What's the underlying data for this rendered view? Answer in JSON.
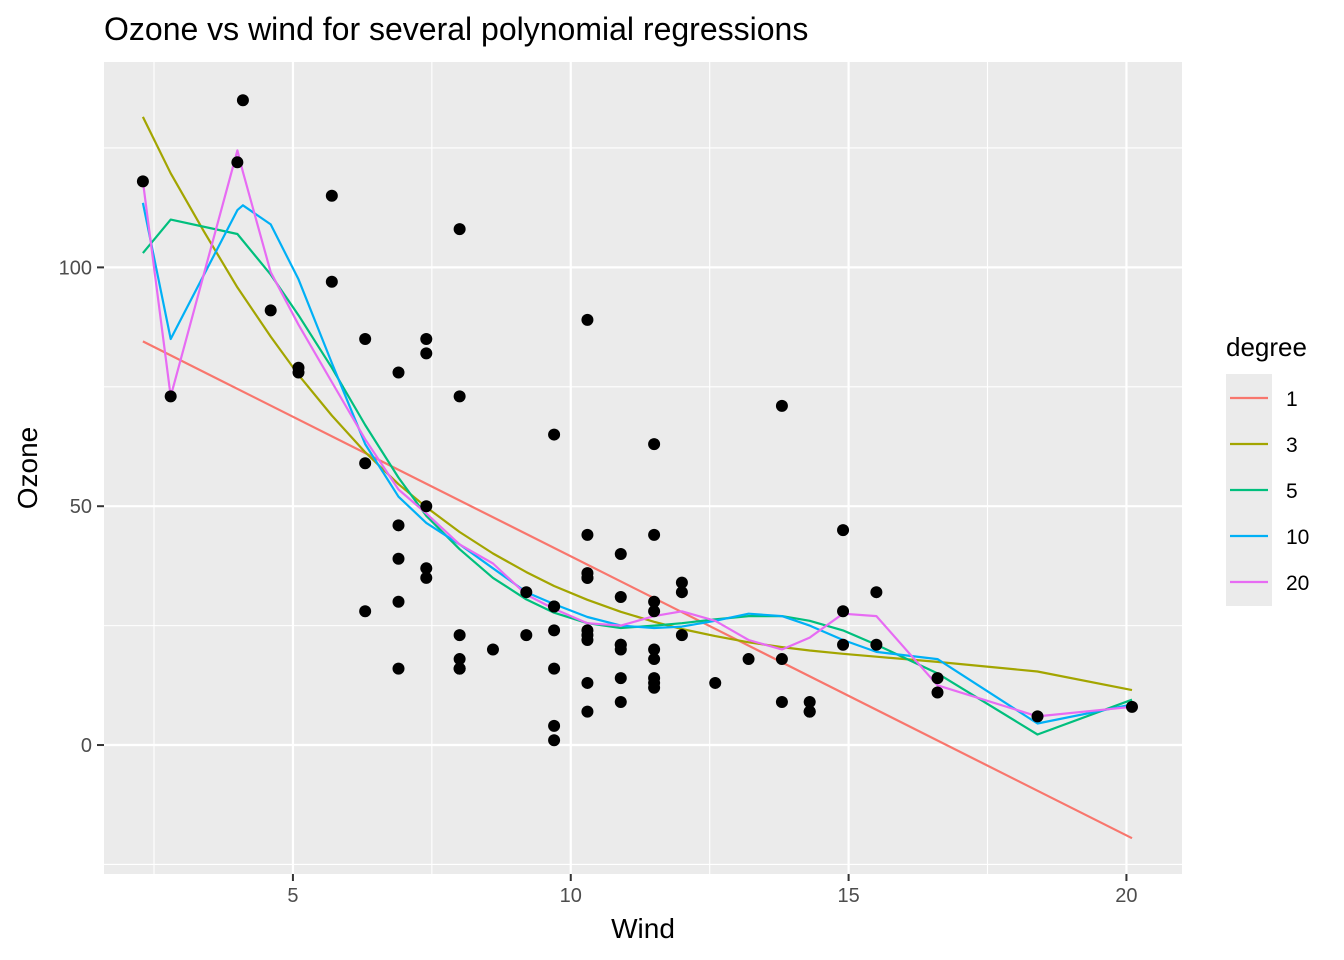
{
  "chart_data": {
    "type": "scatter",
    "title": "Ozone vs wind for several polynomial regressions",
    "xlabel": "Wind",
    "ylabel": "Ozone",
    "xlim": [
      1.6,
      21.0
    ],
    "ylim": [
      -27,
      143
    ],
    "x_ticks": [
      5,
      10,
      15,
      20
    ],
    "y_ticks": [
      0,
      50,
      100
    ],
    "x_minor_ticks": [
      2.5,
      7.5,
      12.5,
      17.5
    ],
    "y_minor_ticks": [
      -25,
      25,
      75,
      125
    ],
    "grid": true,
    "legend": {
      "title": "degree",
      "position": "right"
    },
    "points": {
      "color": "#000000",
      "x": [
        2.3,
        2.8,
        4.0,
        4.1,
        4.6,
        5.1,
        5.1,
        5.7,
        5.7,
        6.3,
        6.3,
        6.3,
        6.9,
        6.9,
        6.9,
        6.9,
        6.9,
        7.4,
        7.4,
        7.4,
        7.4,
        7.4,
        8.0,
        8.0,
        8.0,
        8.0,
        8.0,
        8.0,
        8.6,
        9.2,
        9.2,
        9.7,
        9.7,
        9.7,
        9.7,
        9.7,
        9.7,
        9.7,
        10.3,
        10.3,
        10.3,
        10.3,
        10.3,
        10.3,
        10.3,
        10.3,
        10.3,
        10.3,
        10.9,
        10.9,
        10.9,
        10.9,
        10.9,
        10.9,
        10.9,
        11.5,
        11.5,
        11.5,
        11.5,
        11.5,
        11.5,
        11.5,
        11.5,
        11.5,
        12.0,
        12.0,
        12.0,
        12.6,
        13.2,
        13.8,
        13.8,
        13.8,
        14.3,
        14.3,
        14.3,
        14.9,
        14.9,
        14.9,
        15.5,
        15.5,
        16.6,
        16.6,
        18.4,
        20.1
      ],
      "y": [
        118,
        73,
        122,
        135,
        91,
        78,
        79,
        97,
        115,
        59,
        85,
        28,
        78,
        46,
        39,
        30,
        16,
        85,
        82,
        50,
        37,
        35,
        108,
        73,
        23,
        18,
        16,
        16,
        20,
        32,
        23,
        65,
        29,
        24,
        16,
        4,
        1,
        29,
        89,
        44,
        36,
        35,
        24,
        23,
        22,
        13,
        7,
        35,
        40,
        31,
        21,
        20,
        14,
        9,
        21,
        63,
        44,
        30,
        28,
        20,
        18,
        14,
        13,
        12,
        34,
        32,
        23,
        13,
        18,
        71,
        18,
        9,
        9,
        7,
        7,
        45,
        28,
        21,
        32,
        21,
        14,
        11,
        6,
        8
      ]
    },
    "series": [
      {
        "name": "1",
        "color": "#f8766d",
        "x": [
          2.3,
          20.1
        ],
        "y": [
          84.5,
          -19.5
        ]
      },
      {
        "name": "3",
        "color": "#a3a500",
        "x": [
          2.3,
          2.8,
          3.4,
          4.0,
          4.6,
          5.1,
          5.7,
          6.3,
          6.9,
          7.4,
          8.0,
          8.6,
          9.2,
          9.7,
          10.3,
          10.9,
          11.5,
          12.0,
          12.6,
          13.2,
          13.8,
          14.3,
          14.9,
          15.5,
          16.6,
          18.4,
          20.1
        ],
        "y": [
          131.5,
          119.7,
          107.5,
          95.8,
          85.5,
          77.5,
          69.0,
          61.3,
          54.6,
          49.8,
          44.6,
          40.1,
          36.2,
          33.3,
          30.4,
          27.9,
          25.8,
          24.3,
          22.8,
          21.5,
          20.5,
          19.8,
          19.1,
          18.5,
          17.4,
          15.4,
          11.5
        ]
      },
      {
        "name": "5",
        "color": "#00bf7d",
        "x": [
          2.3,
          2.8,
          4.0,
          4.6,
          5.1,
          5.7,
          6.3,
          6.9,
          7.4,
          8.0,
          8.6,
          9.2,
          9.7,
          10.3,
          10.9,
          11.5,
          12.0,
          12.6,
          13.2,
          13.8,
          14.3,
          14.9,
          15.5,
          16.6,
          18.4,
          20.1
        ],
        "y": [
          103.0,
          110.0,
          107.0,
          98.5,
          90.0,
          79.0,
          67.0,
          56.0,
          48.0,
          41.0,
          35.0,
          30.5,
          27.7,
          25.5,
          24.5,
          25.0,
          25.5,
          26.3,
          27.0,
          27.0,
          26.0,
          24.0,
          21.0,
          15.0,
          2.2,
          9.5
        ]
      },
      {
        "name": "10",
        "color": "#00b0f6",
        "x": [
          2.3,
          2.8,
          4.0,
          4.1,
          4.6,
          5.1,
          5.7,
          6.3,
          6.9,
          7.4,
          8.0,
          8.6,
          9.2,
          9.7,
          10.3,
          10.9,
          11.5,
          12.0,
          12.6,
          13.2,
          13.8,
          14.3,
          14.9,
          15.5,
          16.6,
          18.4,
          20.1
        ],
        "y": [
          113.5,
          85.0,
          112.0,
          113.0,
          109.0,
          97.5,
          80.0,
          63.0,
          52.0,
          46.5,
          42.0,
          37.0,
          32.0,
          29.5,
          26.8,
          25.0,
          24.5,
          24.8,
          26.0,
          27.5,
          27.0,
          25.0,
          22.0,
          19.5,
          18.0,
          4.5,
          8.5
        ]
      },
      {
        "name": "20",
        "color": "#e76bf3",
        "x": [
          2.3,
          2.8,
          4.0,
          4.1,
          4.6,
          5.1,
          5.7,
          6.3,
          6.9,
          7.4,
          8.0,
          8.6,
          9.2,
          9.7,
          10.3,
          10.9,
          11.5,
          12.0,
          12.6,
          13.2,
          13.8,
          14.3,
          14.9,
          15.5,
          16.6,
          18.4,
          20.1
        ],
        "y": [
          118.0,
          73.0,
          124.5,
          120.0,
          99.0,
          88.0,
          76.0,
          64.0,
          53.5,
          48.5,
          42.0,
          38.0,
          31.5,
          28.5,
          25.5,
          25.0,
          27.0,
          28.0,
          26.0,
          22.0,
          20.0,
          22.5,
          27.5,
          27.0,
          12.5,
          6.0,
          8.0
        ]
      }
    ]
  }
}
